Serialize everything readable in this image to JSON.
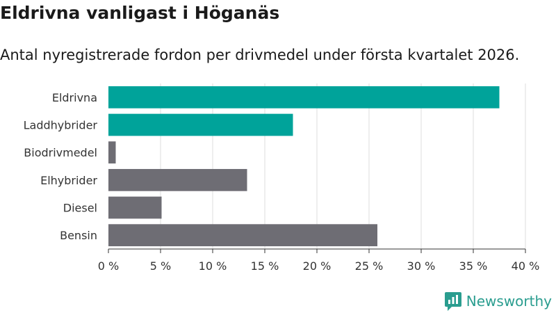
{
  "header": {
    "title": "Eldrivna vanligast i Höganäs",
    "subtitle": "Antal nyregistrerade fordon per drivmedel under första kvartalet 2026."
  },
  "brand": {
    "name": "Newsworthy",
    "icon": "newsworthy-logo-icon",
    "color": "#2a9d8f"
  },
  "chart_data": {
    "type": "bar",
    "orientation": "horizontal",
    "categories": [
      "Eldrivna",
      "Laddhybrider",
      "Biodrivmedel",
      "Elhybrider",
      "Diesel",
      "Bensin"
    ],
    "values": [
      37.5,
      17.7,
      0.7,
      13.3,
      5.1,
      25.8
    ],
    "colors": [
      "#00a39a",
      "#00a39a",
      "#6e6d74",
      "#6e6d74",
      "#6e6d74",
      "#6e6d74"
    ],
    "xlim": [
      0,
      40
    ],
    "xticks": [
      0,
      5,
      10,
      15,
      20,
      25,
      30,
      35,
      40
    ],
    "xtick_labels": [
      "0 %",
      "5 %",
      "10 %",
      "15 %",
      "20 %",
      "25 %",
      "30 %",
      "35 %",
      "40 %"
    ],
    "grid": true,
    "xlabel": "",
    "ylabel": ""
  }
}
